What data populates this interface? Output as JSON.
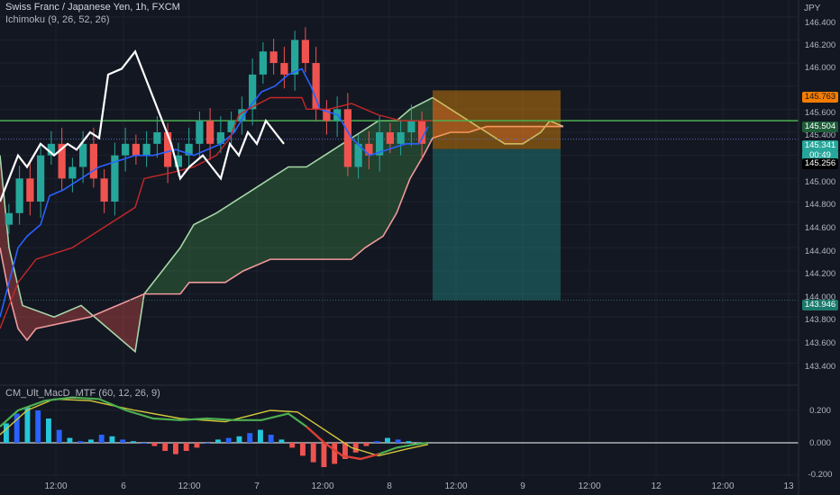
{
  "header": {
    "symbol_title": "Swiss Franc / Japanese Yen, 1h, FXCM",
    "indicator_1": "Ichimoku (9, 26, 52, 26)",
    "indicator_2": "CM_Ult_MacD_MTF (60, 12, 26, 9)"
  },
  "price_axis": {
    "currency": "JPY",
    "labels": [
      "146.400",
      "146.200",
      "146.000",
      "145.600",
      "145.400",
      "145.000",
      "144.800",
      "144.600",
      "144.400",
      "144.200",
      "144.000",
      "143.800",
      "143.600",
      "143.400"
    ]
  },
  "badges": {
    "target": "145.763",
    "resistance": "145.504",
    "last_price": "145.341",
    "countdown": "00:49",
    "entry": "145.256",
    "stop": "143.946"
  },
  "macd_axis": {
    "labels": [
      "0.200",
      "0.000",
      "-0.200"
    ]
  },
  "time_axis": {
    "labels": [
      "12:00",
      "6",
      "12:00",
      "7",
      "12:00",
      "8",
      "12:00",
      "9",
      "12:00",
      "12",
      "12:00",
      "13"
    ]
  },
  "colors": {
    "background": "#131722",
    "bull": "#26a69a",
    "bear": "#ef5350",
    "kijun": "#2962ff",
    "tenkan": "#c62828",
    "chikou": "#ffffff",
    "span_a": "#a5d6a7",
    "span_b": "#ef9a9a",
    "horizontal_line": "#4caf50",
    "target_zone": "#ff9800",
    "stop_zone": "#26a69a",
    "macd_signal": "#d4c93a"
  },
  "chart_data": [
    {
      "type": "candlestick",
      "name": "CHFJPY 1h with Ichimoku cloud",
      "y_range": [
        143.3,
        146.5
      ],
      "candles_close": [
        144.7,
        145.0,
        144.8,
        145.2,
        145.3,
        145.0,
        145.1,
        145.3,
        145.0,
        144.8,
        145.2,
        145.3,
        145.2,
        145.3,
        145.4,
        145.1,
        145.2,
        145.3,
        145.5,
        145.3,
        145.4,
        145.5,
        145.6,
        145.9,
        146.1,
        146.0,
        145.9,
        146.2,
        146.0,
        145.6,
        145.5,
        145.6,
        145.1,
        145.3,
        145.2,
        145.4,
        145.3,
        145.4,
        145.5,
        145.3
      ],
      "overlays": {
        "resistance_line": 145.5,
        "entry": 145.256,
        "target": 145.763,
        "stop": 143.946,
        "last_price": 145.341
      }
    },
    {
      "type": "bar",
      "name": "CM_Ult_MacD_MTF histogram",
      "y_range": [
        -0.25,
        0.3
      ],
      "series": [
        {
          "values": [
            0.12,
            0.18,
            0.22,
            0.2,
            0.15,
            0.08,
            0.03,
            0.01,
            0.02,
            0.05,
            0.04,
            0.02,
            0.01,
            0.0,
            -0.02,
            -0.05,
            -0.07,
            -0.05,
            -0.03,
            0.0,
            0.02,
            0.03,
            0.04,
            0.06,
            0.08,
            0.05,
            0.02,
            -0.03,
            -0.08,
            -0.12,
            -0.15,
            -0.13,
            -0.1,
            -0.06,
            -0.02,
            0.01,
            0.03,
            0.02,
            0.01,
            0.0
          ]
        }
      ]
    }
  ]
}
